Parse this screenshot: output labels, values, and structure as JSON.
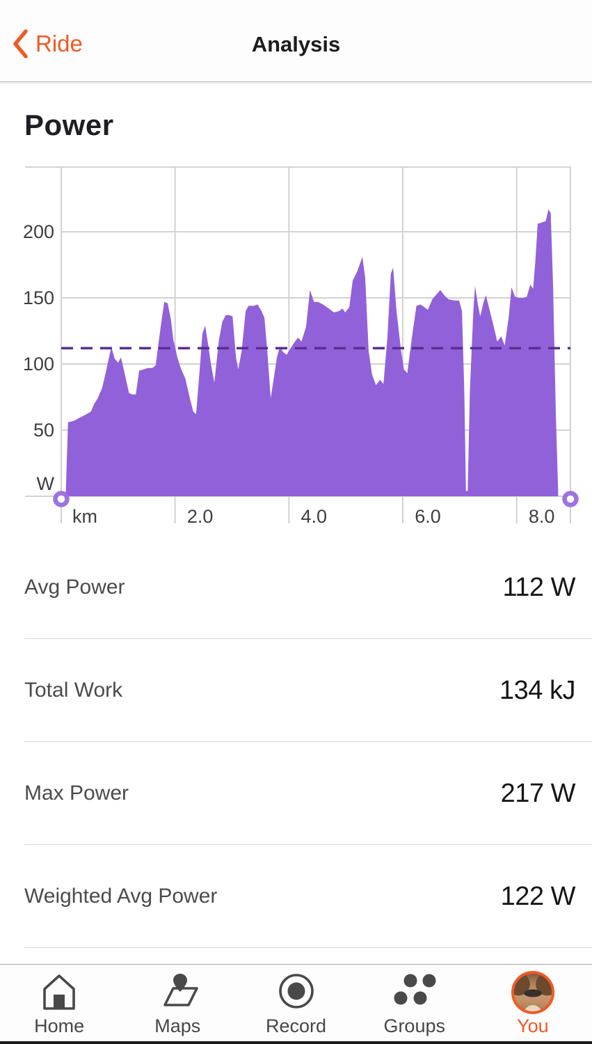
{
  "header": {
    "back_label": "Ride",
    "title": "Analysis"
  },
  "section_title": "Power",
  "chart_data": {
    "type": "area",
    "title": "Power",
    "xlabel": "km",
    "ylabel": "W",
    "x_ticks": [
      2.0,
      4.0,
      6.0,
      8.0
    ],
    "x_tick_labels": [
      "2.0",
      "4.0",
      "6.0",
      "8.0"
    ],
    "y_ticks": [
      50,
      100,
      150,
      200
    ],
    "xlim": [
      0,
      8.95
    ],
    "ylim": [
      0,
      249
    ],
    "grid": true,
    "legend": "none",
    "avg_power_line": 112,
    "series": [
      {
        "name": "Power (W)",
        "points": [
          [
            0.08,
            2
          ],
          [
            0.12,
            56
          ],
          [
            0.22,
            57
          ],
          [
            0.35,
            60
          ],
          [
            0.44,
            62
          ],
          [
            0.52,
            64
          ],
          [
            0.58,
            70
          ],
          [
            0.64,
            74
          ],
          [
            0.72,
            82
          ],
          [
            0.79,
            95
          ],
          [
            0.88,
            113
          ],
          [
            0.94,
            104
          ],
          [
            1.0,
            101
          ],
          [
            1.05,
            105
          ],
          [
            1.12,
            92
          ],
          [
            1.19,
            78
          ],
          [
            1.25,
            77
          ],
          [
            1.31,
            77
          ],
          [
            1.37,
            95
          ],
          [
            1.45,
            96
          ],
          [
            1.52,
            97
          ],
          [
            1.6,
            97
          ],
          [
            1.66,
            99
          ],
          [
            1.71,
            116
          ],
          [
            1.77,
            135
          ],
          [
            1.81,
            147
          ],
          [
            1.87,
            146
          ],
          [
            1.93,
            133
          ],
          [
            1.97,
            118
          ],
          [
            2.0,
            113
          ],
          [
            2.04,
            105
          ],
          [
            2.1,
            97
          ],
          [
            2.18,
            89
          ],
          [
            2.26,
            74
          ],
          [
            2.32,
            64
          ],
          [
            2.37,
            62
          ],
          [
            2.44,
            100
          ],
          [
            2.48,
            123
          ],
          [
            2.53,
            129
          ],
          [
            2.58,
            115
          ],
          [
            2.63,
            100
          ],
          [
            2.69,
            86
          ],
          [
            2.77,
            118
          ],
          [
            2.83,
            132
          ],
          [
            2.89,
            137
          ],
          [
            2.96,
            137
          ],
          [
            3.01,
            136
          ],
          [
            3.07,
            105
          ],
          [
            3.11,
            96
          ],
          [
            3.17,
            110
          ],
          [
            3.24,
            140
          ],
          [
            3.29,
            144
          ],
          [
            3.38,
            144
          ],
          [
            3.45,
            145
          ],
          [
            3.52,
            140
          ],
          [
            3.57,
            135
          ],
          [
            3.62,
            110
          ],
          [
            3.68,
            74
          ],
          [
            3.73,
            88
          ],
          [
            3.79,
            105
          ],
          [
            3.84,
            113
          ],
          [
            3.9,
            109
          ],
          [
            3.96,
            107
          ],
          [
            4.03,
            112
          ],
          [
            4.09,
            116
          ],
          [
            4.16,
            120
          ],
          [
            4.22,
            117
          ],
          [
            4.3,
            128
          ],
          [
            4.37,
            156
          ],
          [
            4.44,
            147
          ],
          [
            4.51,
            147
          ],
          [
            4.6,
            145
          ],
          [
            4.7,
            142
          ],
          [
            4.79,
            139
          ],
          [
            4.88,
            140
          ],
          [
            4.94,
            142
          ],
          [
            4.99,
            139
          ],
          [
            5.06,
            143
          ],
          [
            5.12,
            163
          ],
          [
            5.2,
            170
          ],
          [
            5.29,
            181
          ],
          [
            5.34,
            165
          ],
          [
            5.4,
            110
          ],
          [
            5.46,
            92
          ],
          [
            5.53,
            84
          ],
          [
            5.6,
            88
          ],
          [
            5.66,
            85
          ],
          [
            5.73,
            120
          ],
          [
            5.79,
            168
          ],
          [
            5.83,
            173
          ],
          [
            5.89,
            140
          ],
          [
            5.97,
            110
          ],
          [
            6.02,
            96
          ],
          [
            6.08,
            93
          ],
          [
            6.16,
            120
          ],
          [
            6.24,
            144
          ],
          [
            6.31,
            145
          ],
          [
            6.38,
            143
          ],
          [
            6.44,
            141
          ],
          [
            6.52,
            149
          ],
          [
            6.58,
            152
          ],
          [
            6.66,
            156
          ],
          [
            6.73,
            152
          ],
          [
            6.8,
            149
          ],
          [
            6.9,
            148
          ],
          [
            6.99,
            148
          ],
          [
            7.04,
            140
          ],
          [
            7.08,
            80
          ],
          [
            7.11,
            4
          ],
          [
            7.14,
            4
          ],
          [
            7.18,
            80
          ],
          [
            7.24,
            140
          ],
          [
            7.27,
            159
          ],
          [
            7.32,
            145
          ],
          [
            7.36,
            136
          ],
          [
            7.42,
            147
          ],
          [
            7.46,
            152
          ],
          [
            7.53,
            140
          ],
          [
            7.6,
            128
          ],
          [
            7.66,
            117
          ],
          [
            7.73,
            121
          ],
          [
            7.79,
            114
          ],
          [
            7.86,
            135
          ],
          [
            7.91,
            158
          ],
          [
            7.97,
            151
          ],
          [
            8.04,
            150
          ],
          [
            8.12,
            150
          ],
          [
            8.18,
            151
          ],
          [
            8.24,
            160
          ],
          [
            8.29,
            157
          ],
          [
            8.33,
            178
          ],
          [
            8.37,
            206
          ],
          [
            8.44,
            207
          ],
          [
            8.51,
            208
          ],
          [
            8.56,
            217
          ],
          [
            8.6,
            214
          ],
          [
            8.64,
            160
          ],
          [
            8.69,
            60
          ],
          [
            8.73,
            3
          ]
        ]
      }
    ]
  },
  "stats": [
    {
      "label": "Avg Power",
      "value": "112 W"
    },
    {
      "label": "Total Work",
      "value": "134 kJ"
    },
    {
      "label": "Max Power",
      "value": "217 W"
    },
    {
      "label": "Weighted Avg Power",
      "value": "122 W"
    }
  ],
  "tab_bar": {
    "items": [
      {
        "label": "Home",
        "active": false
      },
      {
        "label": "Maps",
        "active": false
      },
      {
        "label": "Record",
        "active": false
      },
      {
        "label": "Groups",
        "active": false
      },
      {
        "label": "You",
        "active": true
      }
    ]
  },
  "colors": {
    "accent": "#F05A24",
    "chart_area": "#9161DA",
    "chart_avg_line": "#5C2E91",
    "chart_handle": "#9D72E2",
    "chart_grid": "#D2D2D2",
    "axis_text": "#3E3E3E",
    "stat_label": "#4B4B4B",
    "stat_value": "#161616",
    "tab_icon": "#494949",
    "tab_label": "#464646"
  }
}
